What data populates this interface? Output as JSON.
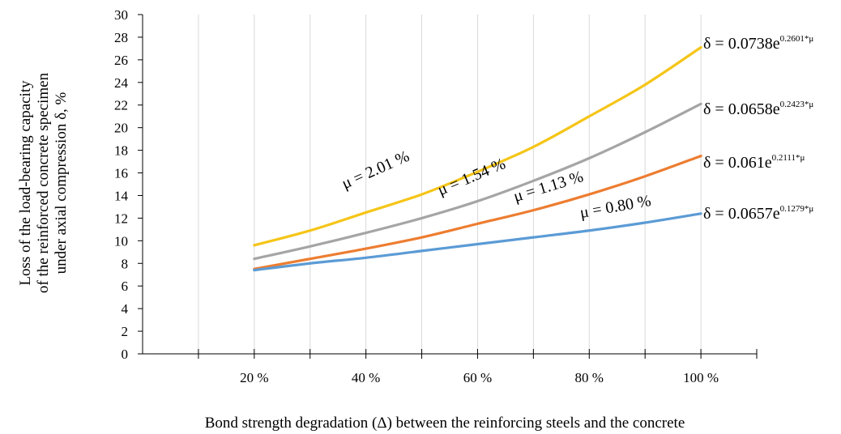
{
  "chart_data": {
    "type": "line",
    "ylabel": [
      "Loss of the load-bearing capacity",
      "of the reinforced concrete specimen",
      "under axial compression δ, %"
    ],
    "xlabel": "Bond strength degradation (Δ) between the reinforcing steels and the concrete",
    "categories": [
      "20 %",
      "40 %",
      "60 %",
      "80 %",
      "100 %"
    ],
    "x": [
      20,
      40,
      60,
      80,
      100
    ],
    "xlim": [
      0,
      110
    ],
    "ylim": [
      0,
      30
    ],
    "yticks": [
      0,
      2,
      4,
      6,
      8,
      10,
      12,
      14,
      16,
      18,
      20,
      22,
      24,
      26,
      28,
      30
    ],
    "grid": true,
    "series": [
      {
        "name": "μ = 2.01 %",
        "color": "#F5C518",
        "x": [
          20,
          30,
          40,
          50,
          60,
          70,
          80,
          90,
          100
        ],
        "values": [
          9.6,
          10.9,
          12.5,
          14.1,
          16.1,
          18.3,
          21.0,
          23.8,
          27.1
        ],
        "equation": {
          "base": "δ = 0.0738e",
          "exp": "0.2601*μ"
        }
      },
      {
        "name": "μ = 1.54 %",
        "color": "#A5A5A5",
        "x": [
          20,
          30,
          40,
          50,
          60,
          70,
          80,
          90,
          100
        ],
        "values": [
          8.4,
          9.5,
          10.7,
          12.0,
          13.5,
          15.3,
          17.3,
          19.6,
          22.1
        ],
        "equation": {
          "base": "δ = 0.0658e",
          "exp": "0.2423*μ"
        }
      },
      {
        "name": "μ = 1.13 %",
        "color": "#ED7D31",
        "x": [
          20,
          30,
          40,
          50,
          60,
          70,
          80,
          90,
          100
        ],
        "values": [
          7.5,
          8.4,
          9.3,
          10.3,
          11.5,
          12.7,
          14.1,
          15.7,
          17.5
        ],
        "equation": {
          "base": "δ = 0.061e",
          "exp": "0.2111*μ"
        }
      },
      {
        "name": "μ = 0.80 %",
        "color": "#5B9BD5",
        "x": [
          20,
          30,
          40,
          50,
          60,
          70,
          80,
          90,
          100
        ],
        "values": [
          7.4,
          8.0,
          8.5,
          9.1,
          9.7,
          10.3,
          10.9,
          11.6,
          12.4
        ],
        "equation": {
          "base": "δ = 0.0657e",
          "exp": "0.1279*μ"
        }
      }
    ]
  }
}
